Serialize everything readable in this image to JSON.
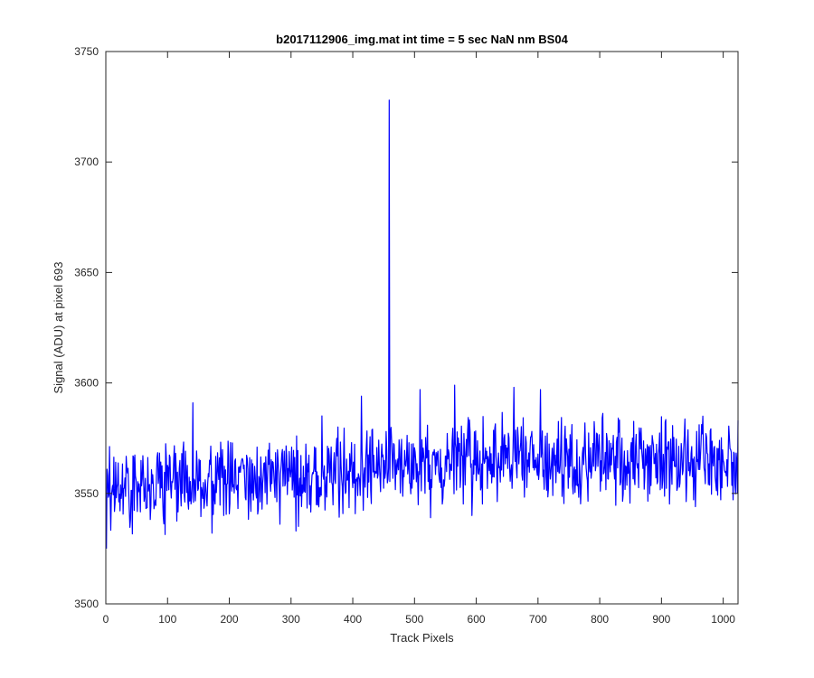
{
  "chart_data": {
    "type": "line",
    "title": "b2017112906_img.mat int time = 5 sec  NaN nm BS04",
    "xlabel": "Track Pixels",
    "ylabel": "Signal (ADU) at pixel 693",
    "xlim": [
      0,
      1024
    ],
    "ylim": [
      3500,
      3750
    ],
    "x_ticks": [
      0,
      100,
      200,
      300,
      400,
      500,
      600,
      700,
      800,
      900,
      1000
    ],
    "y_ticks": [
      3500,
      3550,
      3600,
      3650,
      3700,
      3750
    ],
    "grid": false,
    "legend": "none",
    "series": [
      {
        "color": "#0000ff",
        "n_points": 1024,
        "baseline_start": 3553,
        "baseline_end": 3565,
        "noise_range": 30,
        "spike": {
          "x": 459,
          "y": 3728
        },
        "features": [
          {
            "x": 1,
            "y": 3525
          },
          {
            "x": 141,
            "y": 3591
          },
          {
            "x": 172,
            "y": 3532
          },
          {
            "x": 308,
            "y": 3533
          },
          {
            "x": 414,
            "y": 3594
          },
          {
            "x": 509,
            "y": 3597
          },
          {
            "x": 526,
            "y": 3539
          },
          {
            "x": 565,
            "y": 3599
          },
          {
            "x": 593,
            "y": 3540
          },
          {
            "x": 661,
            "y": 3598
          },
          {
            "x": 704,
            "y": 3597
          },
          {
            "x": 955,
            "y": 3544
          },
          {
            "x": 1024,
            "y": 3583
          }
        ]
      }
    ]
  }
}
